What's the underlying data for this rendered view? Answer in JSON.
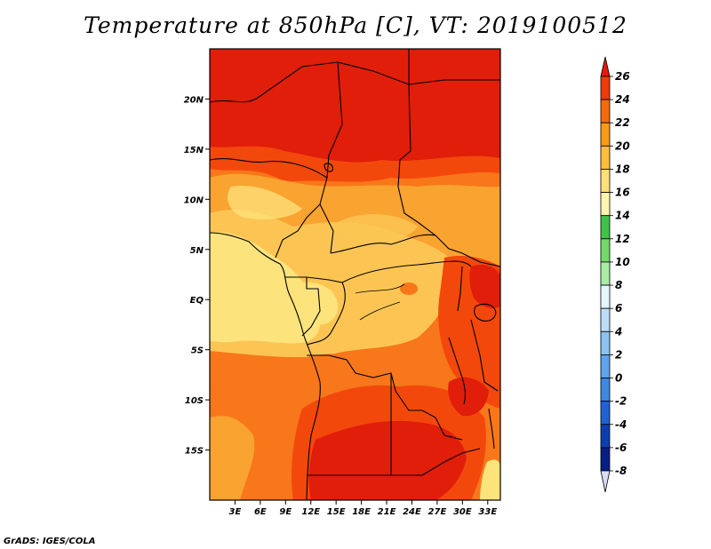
{
  "title": "Temperature at 850hPa [C], VT: 2019100512",
  "footer": "GrADS: IGES/COLA",
  "map": {
    "lon_range": [
      0,
      34.5
    ],
    "lat_range": [
      -20,
      25
    ],
    "lat_ticks": [
      {
        "value": 20,
        "label": "20N"
      },
      {
        "value": 15,
        "label": "15N"
      },
      {
        "value": 10,
        "label": "10N"
      },
      {
        "value": 5,
        "label": "5N"
      },
      {
        "value": 0,
        "label": "EQ"
      },
      {
        "value": -5,
        "label": "5S"
      },
      {
        "value": -10,
        "label": "10S"
      },
      {
        "value": -15,
        "label": "15S"
      }
    ],
    "lon_ticks": [
      {
        "value": 3,
        "label": "3E"
      },
      {
        "value": 6,
        "label": "6E"
      },
      {
        "value": 9,
        "label": "9E"
      },
      {
        "value": 12,
        "label": "12E"
      },
      {
        "value": 15,
        "label": "15E"
      },
      {
        "value": 18,
        "label": "18E"
      },
      {
        "value": 21,
        "label": "21E"
      },
      {
        "value": 24,
        "label": "24E"
      },
      {
        "value": 27,
        "label": "27E"
      },
      {
        "value": 30,
        "label": "30E"
      },
      {
        "value": 33,
        "label": "33E"
      }
    ]
  },
  "colorbar": {
    "levels": [
      "26",
      "24",
      "22",
      "20",
      "18",
      "16",
      "14",
      "12",
      "10",
      "8",
      "6",
      "4",
      "2",
      "0",
      "-2",
      "-4",
      "-6",
      "-8"
    ],
    "colors": [
      "#e11b0b",
      "#f03c0a",
      "#f76a0b",
      "#fa9a18",
      "#fdbf3b",
      "#fee07a",
      "#fff5ae",
      "#3fc24a",
      "#72d96a",
      "#a9eca4",
      "#e4f7ff",
      "#bcdcf7",
      "#8cc1f0",
      "#5fa4e8",
      "#3f87df",
      "#2062d2",
      "#0d3eb0",
      "#061f82",
      "#d9dcf4"
    ]
  },
  "palette": {
    "red": "#e01e0a",
    "orange_red": "#f3480c",
    "orange": "#f7771a",
    "light_orange": "#f9a330",
    "yellow_orange": "#fcc553",
    "pale_yellow": "#fde37c"
  }
}
